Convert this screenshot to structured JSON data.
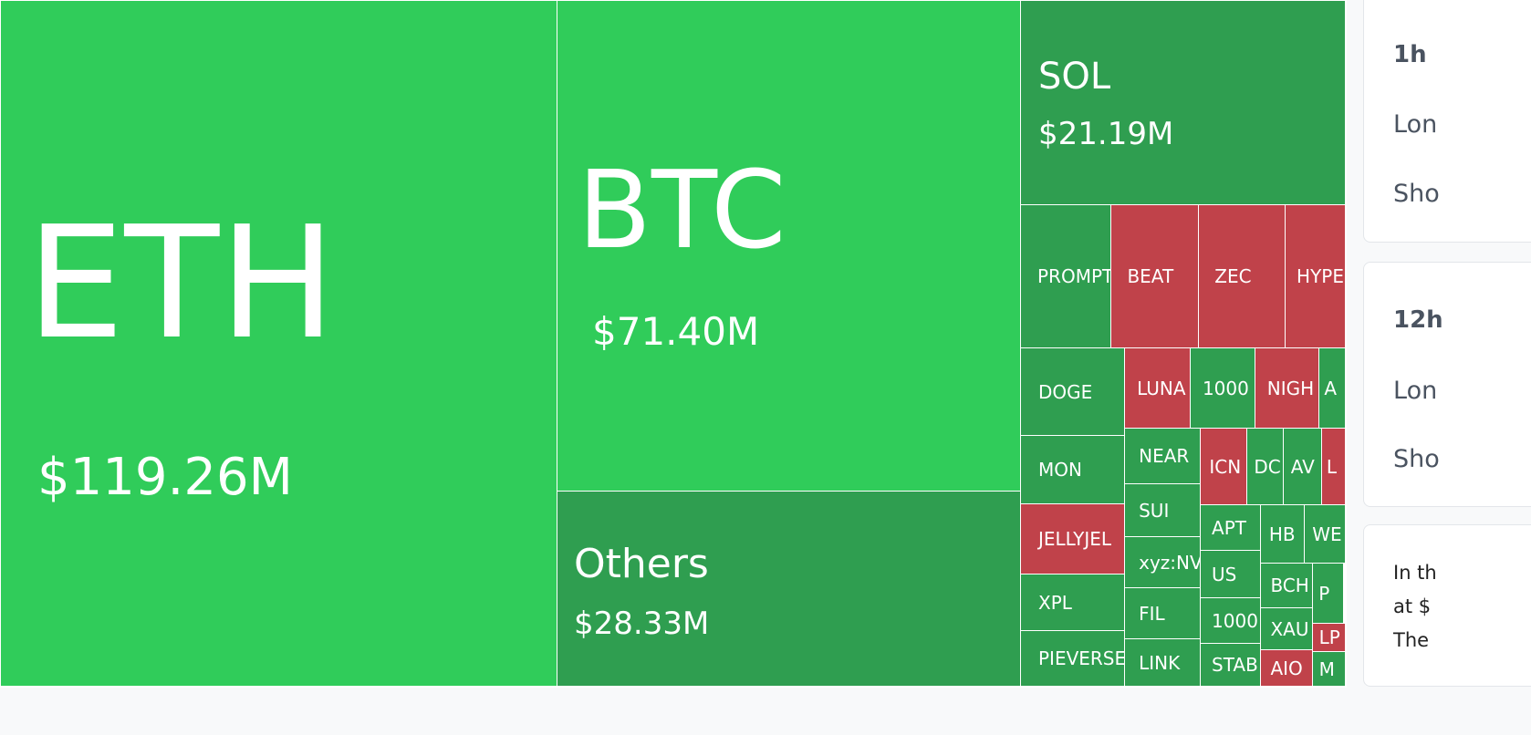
{
  "colors": {
    "up_strong": "#30cc5a",
    "up": "#2f9e50",
    "down": "#c0424a",
    "panel_bg": "#f8f9fa"
  },
  "treemap": {
    "eth": {
      "symbol": "ETH",
      "value": "$119.26M"
    },
    "btc": {
      "symbol": "BTC",
      "value": "$71.40M"
    },
    "others": {
      "symbol": "Others",
      "value": "$28.33M"
    },
    "sol": {
      "symbol": "SOL",
      "value": "$21.19M"
    },
    "small": [
      "PROMPT",
      "BEAT",
      "ZEC",
      "HYPE",
      "DOGE",
      "LUNA",
      "1000",
      "NIGH",
      "A",
      "MON",
      "JELLYJEL",
      "XPL",
      "PIEVERSE",
      "NEAR",
      "SUI",
      "xyz:NV",
      "FIL",
      "LINK",
      "ICN",
      "DC",
      "AV",
      "L",
      "APT",
      "US",
      "1000",
      "STAB",
      "HB",
      "WE",
      "BCH",
      "XAU",
      "AIO",
      "P",
      "LP",
      "M"
    ]
  },
  "side": {
    "card1": {
      "title": "1h",
      "row1": "Lon",
      "row2": "Sho"
    },
    "card2": {
      "title": "12h",
      "row1": "Lon",
      "row2": "Sho"
    },
    "card3": {
      "line1": "In th",
      "line2": "at $",
      "line3": "The"
    }
  }
}
